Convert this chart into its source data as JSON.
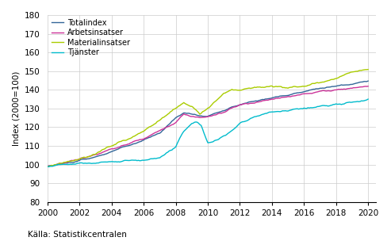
{
  "title": "",
  "ylabel": "Index (2000=100)",
  "xlabel": "",
  "source": "Källa: Statistikcentralen",
  "ylim": [
    80,
    180
  ],
  "xlim": [
    2000.0,
    2020.5
  ],
  "yticks": [
    80,
    90,
    100,
    110,
    120,
    130,
    140,
    150,
    160,
    170,
    180
  ],
  "xticks": [
    2000,
    2002,
    2004,
    2006,
    2008,
    2010,
    2012,
    2014,
    2016,
    2018,
    2020
  ],
  "colors": {
    "Totalindex": "#336699",
    "Arbetsinsatser": "#CC3399",
    "Materialinsatser": "#AACC00",
    "Tjanster": "#00BBCC"
  },
  "background_color": "#ffffff",
  "grid_color": "#cccccc",
  "linewidth": 1.0
}
